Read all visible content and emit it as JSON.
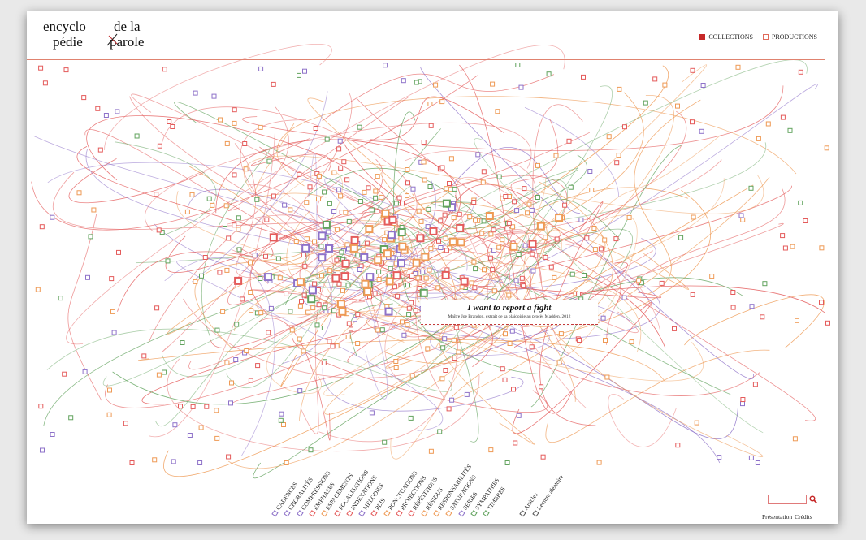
{
  "logo": {
    "line1_left": "encyclo",
    "line2_left": "pédie",
    "line1_right": "de la",
    "line2_right": "parole"
  },
  "nav": {
    "collections": "COLLECTIONS",
    "productions": "PRODUCTIONS"
  },
  "colors": {
    "accent": "#c43a3a",
    "collections_square": "#c62828",
    "productions_square": "#e06a5a",
    "line_red": "#e45b5b",
    "line_orange": "#ee9a55",
    "line_purple": "#8e72c9",
    "line_green": "#62a35e",
    "rule": "#e0826f"
  },
  "tooltip": {
    "title": "I want to report a fight",
    "subtitle": "Maître Joe Brandon, extrait de sa plaidoirie au procès Madden, 2012"
  },
  "categories": [
    {
      "label": "CADENCES",
      "color": "#8e72c9"
    },
    {
      "label": "CHORALITÉS",
      "color": "#8e72c9"
    },
    {
      "label": "COMPRESSIONS",
      "color": "#8e72c9"
    },
    {
      "label": "EMPHASES",
      "color": "#e45b5b"
    },
    {
      "label": "ESPACEMENTS",
      "color": "#ee9a55"
    },
    {
      "label": "FOCALISATIONS",
      "color": "#e45b5b"
    },
    {
      "label": "INDEXATIONS",
      "color": "#e45b5b"
    },
    {
      "label": "MÉLODIES",
      "color": "#8e72c9"
    },
    {
      "label": "PLIS",
      "color": "#e45b5b"
    },
    {
      "label": "PONCTUATIONS",
      "color": "#ee9a55"
    },
    {
      "label": "PROJECTIONS",
      "color": "#e45b5b"
    },
    {
      "label": "RÉPÉTITIONS",
      "color": "#e45b5b"
    },
    {
      "label": "RÉSIDUS",
      "color": "#ee9a55"
    },
    {
      "label": "RESPONSABILITÉS",
      "color": "#ee9a55"
    },
    {
      "label": "SATURATIONS",
      "color": "#ee9a55"
    },
    {
      "label": "SÉRIES",
      "color": "#8e72c9"
    },
    {
      "label": "SYMPATHIES",
      "color": "#62a35e"
    },
    {
      "label": "TIMBRES",
      "color": "#62a35e"
    }
  ],
  "extra_links": [
    {
      "label": "Articles",
      "color": "#555555"
    },
    {
      "label": "Lecture aléatoire",
      "color": "#555555"
    }
  ],
  "search": {
    "placeholder": "",
    "icon": "search-icon"
  },
  "footer": {
    "presentation": "Présentation",
    "credits": "Crédits"
  }
}
